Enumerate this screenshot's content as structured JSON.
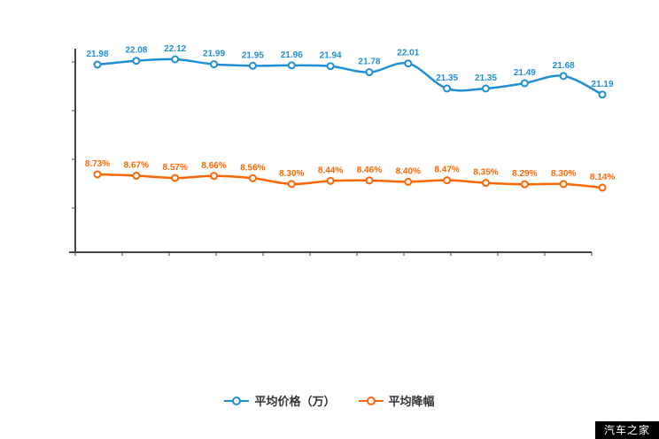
{
  "chart_data": {
    "type": "line",
    "x_count": 14,
    "grid": false,
    "legend_position": "bottom",
    "series": [
      {
        "name": "平均价格（万）",
        "color": "#1f8fd5",
        "unit": "万",
        "values": [
          21.98,
          22.08,
          22.12,
          21.99,
          21.95,
          21.96,
          21.94,
          21.78,
          22.01,
          21.35,
          21.35,
          21.49,
          21.68,
          21.19
        ],
        "labels": [
          "21.98",
          "22.08",
          "22.12",
          "21.99",
          "21.95",
          "21.96",
          "21.94",
          "21.78",
          "22.01",
          "21.35",
          "21.35",
          "21.49",
          "21.68",
          "21.19"
        ]
      },
      {
        "name": "平均降幅",
        "color": "#ff6600",
        "unit": "%",
        "values": [
          8.73,
          8.67,
          8.57,
          8.66,
          8.56,
          8.3,
          8.44,
          8.46,
          8.4,
          8.47,
          8.35,
          8.29,
          8.3,
          8.14
        ],
        "labels": [
          "8.73%",
          "8.67%",
          "8.57%",
          "8.66%",
          "8.56%",
          "8.30%",
          "8.44%",
          "8.46%",
          "8.40%",
          "8.47%",
          "8.35%",
          "8.29%",
          "8.30%",
          "8.14%"
        ]
      }
    ]
  },
  "watermark": {
    "text": "汽车之家"
  }
}
